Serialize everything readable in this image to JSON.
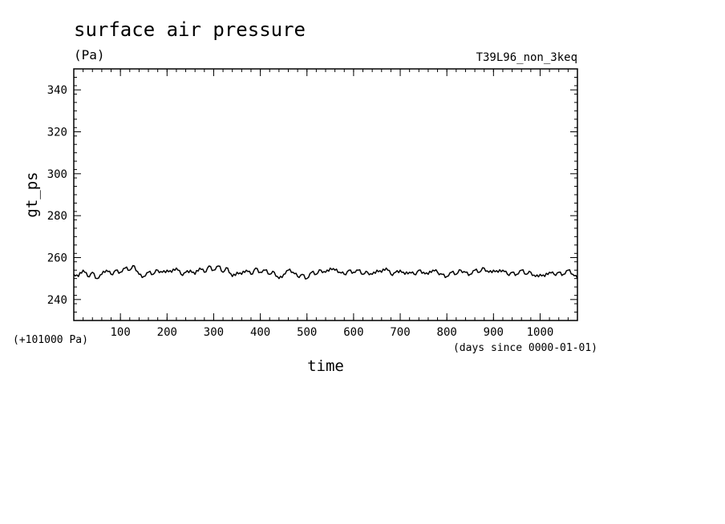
{
  "chart_data": {
    "type": "line",
    "title": "surface air pressure",
    "units": "(Pa)",
    "run_label": "T39L96_non_3keq",
    "xlabel": "time",
    "x_units": "(days since 0000-01-01)",
    "ylabel": "gt_ps",
    "y_offset_label": "(+101000 Pa)",
    "xlim": [
      0,
      1080
    ],
    "ylim": [
      230,
      350
    ],
    "x_ticks": [
      100,
      200,
      300,
      400,
      500,
      600,
      700,
      800,
      900,
      1000
    ],
    "y_ticks": [
      240,
      260,
      280,
      300,
      320,
      340
    ],
    "x_minor_step": 20,
    "y_minor_step": 4,
    "grid": false,
    "line_color": "#000000",
    "series": [
      {
        "x": [
          0,
          10,
          20,
          30,
          40,
          50,
          60,
          70,
          80,
          90,
          100,
          110,
          120,
          130,
          140,
          150,
          160,
          170,
          180,
          190,
          200,
          210,
          220,
          230,
          240,
          250,
          260,
          270,
          280,
          290,
          300,
          310,
          320,
          330,
          340,
          350,
          360,
          370,
          380,
          390,
          400,
          410,
          420,
          430,
          440,
          450,
          460,
          470,
          480,
          490,
          500,
          510,
          520,
          530,
          540,
          550,
          560,
          570,
          580,
          590,
          600,
          610,
          620,
          630,
          640,
          650,
          660,
          670,
          680,
          690,
          700,
          710,
          720,
          730,
          740,
          750,
          760,
          770,
          780,
          790,
          800,
          810,
          820,
          830,
          840,
          850,
          860,
          870,
          880,
          890,
          900,
          910,
          920,
          930,
          940,
          950,
          960,
          970,
          980,
          990,
          1000,
          1010,
          1020,
          1030,
          1040,
          1050,
          1060,
          1070,
          1080
        ],
        "y": [
          252,
          251,
          254,
          251,
          253,
          250,
          252,
          254,
          252,
          254,
          253,
          255,
          254,
          256,
          252,
          251,
          253,
          252,
          254,
          253,
          254,
          253,
          255,
          252,
          253,
          254,
          252,
          255,
          253,
          256,
          254,
          256,
          253,
          255,
          251,
          253,
          252,
          254,
          252,
          255,
          253,
          254,
          252,
          253,
          250,
          252,
          254,
          253,
          251,
          252,
          250,
          253,
          252,
          254,
          253,
          255,
          254,
          253,
          252,
          254,
          253,
          254,
          252,
          253,
          252,
          254,
          253,
          255,
          252,
          253,
          254,
          252,
          253,
          252,
          254,
          253,
          252,
          254,
          253,
          252,
          251,
          253,
          252,
          254,
          253,
          252,
          254,
          253,
          255,
          253,
          254,
          253,
          254,
          252,
          253,
          252,
          254,
          252,
          253,
          251,
          252,
          251,
          253,
          252,
          253,
          252,
          254,
          252,
          250
        ]
      }
    ]
  }
}
